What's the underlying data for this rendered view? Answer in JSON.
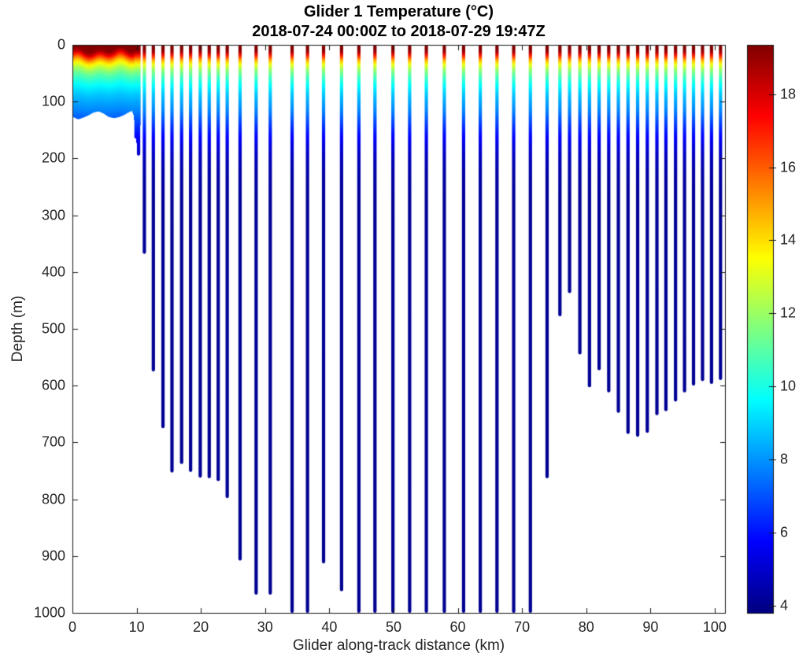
{
  "figure": {
    "background": "#ffffff"
  },
  "chart_data": {
    "type": "scatter",
    "title": "Glider 1 Temperature (°C)",
    "subtitle": "2018-07-24 00:00Z to 2018-07-29 19:47Z",
    "xlabel": "Glider along-track distance (km)",
    "ylabel": "Depth (m)",
    "xlim": [
      0,
      101.6
    ],
    "ylim": [
      0,
      1000
    ],
    "y_axis_reversed": true,
    "grid": false,
    "x_ticks": [
      0,
      10,
      20,
      30,
      40,
      50,
      60,
      70,
      80,
      90,
      100
    ],
    "y_ticks": [
      0,
      100,
      200,
      300,
      400,
      500,
      600,
      700,
      800,
      900,
      1000
    ],
    "colorbar": {
      "colormap": "jet",
      "min": 3.8,
      "max": 19.35,
      "ticks": [
        4,
        6,
        8,
        10,
        12,
        14,
        16,
        18
      ],
      "position": "right"
    },
    "temperature_profile_depth_temp": [
      [
        0,
        19.3
      ],
      [
        10,
        19.2
      ],
      [
        16,
        18.0
      ],
      [
        22,
        16.2
      ],
      [
        28,
        14.6
      ],
      [
        35,
        13.2
      ],
      [
        45,
        11.8
      ],
      [
        55,
        10.8
      ],
      [
        70,
        9.7
      ],
      [
        85,
        8.9
      ],
      [
        100,
        8.3
      ],
      [
        115,
        7.8
      ],
      [
        130,
        7.1
      ],
      [
        150,
        6.2
      ],
      [
        175,
        5.3
      ],
      [
        200,
        4.7
      ],
      [
        230,
        4.35
      ],
      [
        280,
        4.15
      ],
      [
        1000,
        4.05
      ]
    ],
    "surface_block": {
      "x_start": 0,
      "x_end": 10.5,
      "bottom_profile": [
        [
          0,
          127
        ],
        [
          0.8,
          131
        ],
        [
          1.6,
          128
        ],
        [
          2.4,
          124
        ],
        [
          3.2,
          119
        ],
        [
          4,
          117
        ],
        [
          4.8,
          121
        ],
        [
          5.6,
          127
        ],
        [
          6.4,
          129
        ],
        [
          7.2,
          127
        ],
        [
          8,
          123
        ],
        [
          8.6,
          119
        ],
        [
          9.2,
          116
        ],
        [
          9.5,
          125
        ],
        [
          9.7,
          150
        ],
        [
          10,
          180
        ],
        [
          10.2,
          160
        ],
        [
          10.5,
          135
        ]
      ]
    },
    "profiles_x_km_depth_m": [
      [
        9.9,
        165
      ],
      [
        10.3,
        195
      ],
      [
        11.2,
        368
      ],
      [
        12.6,
        575
      ],
      [
        14.1,
        675
      ],
      [
        15.5,
        753
      ],
      [
        17,
        738
      ],
      [
        18.4,
        752
      ],
      [
        19.9,
        762
      ],
      [
        21.3,
        763
      ],
      [
        22.7,
        768
      ],
      [
        24.1,
        798
      ],
      [
        26.1,
        908
      ],
      [
        28.6,
        968
      ],
      [
        30.8,
        968
      ],
      [
        34.2,
        1000
      ],
      [
        36.6,
        1000
      ],
      [
        39.1,
        913
      ],
      [
        41.9,
        962
      ],
      [
        44.6,
        1000
      ],
      [
        47.1,
        1000
      ],
      [
        49.9,
        1000
      ],
      [
        52.5,
        1000
      ],
      [
        55.1,
        1000
      ],
      [
        57.9,
        1000
      ],
      [
        60.9,
        1000
      ],
      [
        63.5,
        1000
      ],
      [
        66.1,
        1000
      ],
      [
        68.7,
        1000
      ],
      [
        71.3,
        1000
      ],
      [
        73.9,
        763
      ],
      [
        75.9,
        478
      ],
      [
        77.4,
        437
      ],
      [
        79,
        545
      ],
      [
        80.5,
        603
      ],
      [
        82,
        573
      ],
      [
        83.5,
        612
      ],
      [
        85,
        648
      ],
      [
        86.5,
        685
      ],
      [
        88,
        690
      ],
      [
        89.5,
        683
      ],
      [
        91,
        652
      ],
      [
        92.4,
        645
      ],
      [
        93.9,
        628
      ],
      [
        95.3,
        612
      ],
      [
        96.7,
        600
      ],
      [
        98.1,
        592
      ],
      [
        99.5,
        597
      ],
      [
        100.9,
        590
      ]
    ]
  }
}
